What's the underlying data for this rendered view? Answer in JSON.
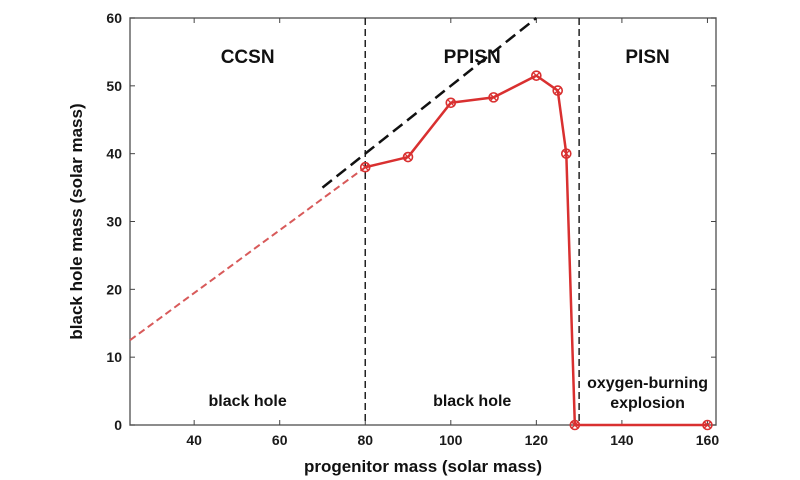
{
  "chart_data": {
    "type": "line",
    "xlabel": "progenitor mass (solar mass)",
    "ylabel": "black hole mass (solar mass)",
    "xlim": [
      25,
      162
    ],
    "ylim": [
      0,
      60
    ],
    "x_ticks": [
      40,
      60,
      80,
      100,
      120,
      140,
      160
    ],
    "y_ticks": [
      0,
      10,
      20,
      30,
      40,
      50,
      60
    ],
    "grid": false,
    "series": [
      {
        "style": "red-solid-markers",
        "color": "#d93030",
        "x": [
          80,
          90,
          100,
          110,
          120,
          125,
          127,
          129,
          160
        ],
        "y": [
          38,
          39.5,
          47.5,
          48.3,
          51.5,
          49.3,
          40,
          0,
          0
        ]
      },
      {
        "style": "red-dashed",
        "color": "#d85a5a",
        "x": [
          25,
          80
        ],
        "y": [
          12.5,
          38
        ]
      },
      {
        "style": "black-dashed",
        "color": "#111111",
        "x": [
          70,
          120
        ],
        "y": [
          35,
          60
        ]
      }
    ],
    "vlines": [
      {
        "x": 80,
        "color": "#222222"
      },
      {
        "x": 130,
        "color": "#222222"
      }
    ],
    "regions": [
      {
        "name": "CCSN",
        "x": 52.5,
        "outcome": [
          "black hole"
        ]
      },
      {
        "name": "PPISN",
        "x": 105,
        "outcome": [
          "black hole"
        ]
      },
      {
        "name": "PISN",
        "x": 146,
        "outcome": [
          "oxygen-burning",
          "explosion"
        ]
      }
    ]
  }
}
